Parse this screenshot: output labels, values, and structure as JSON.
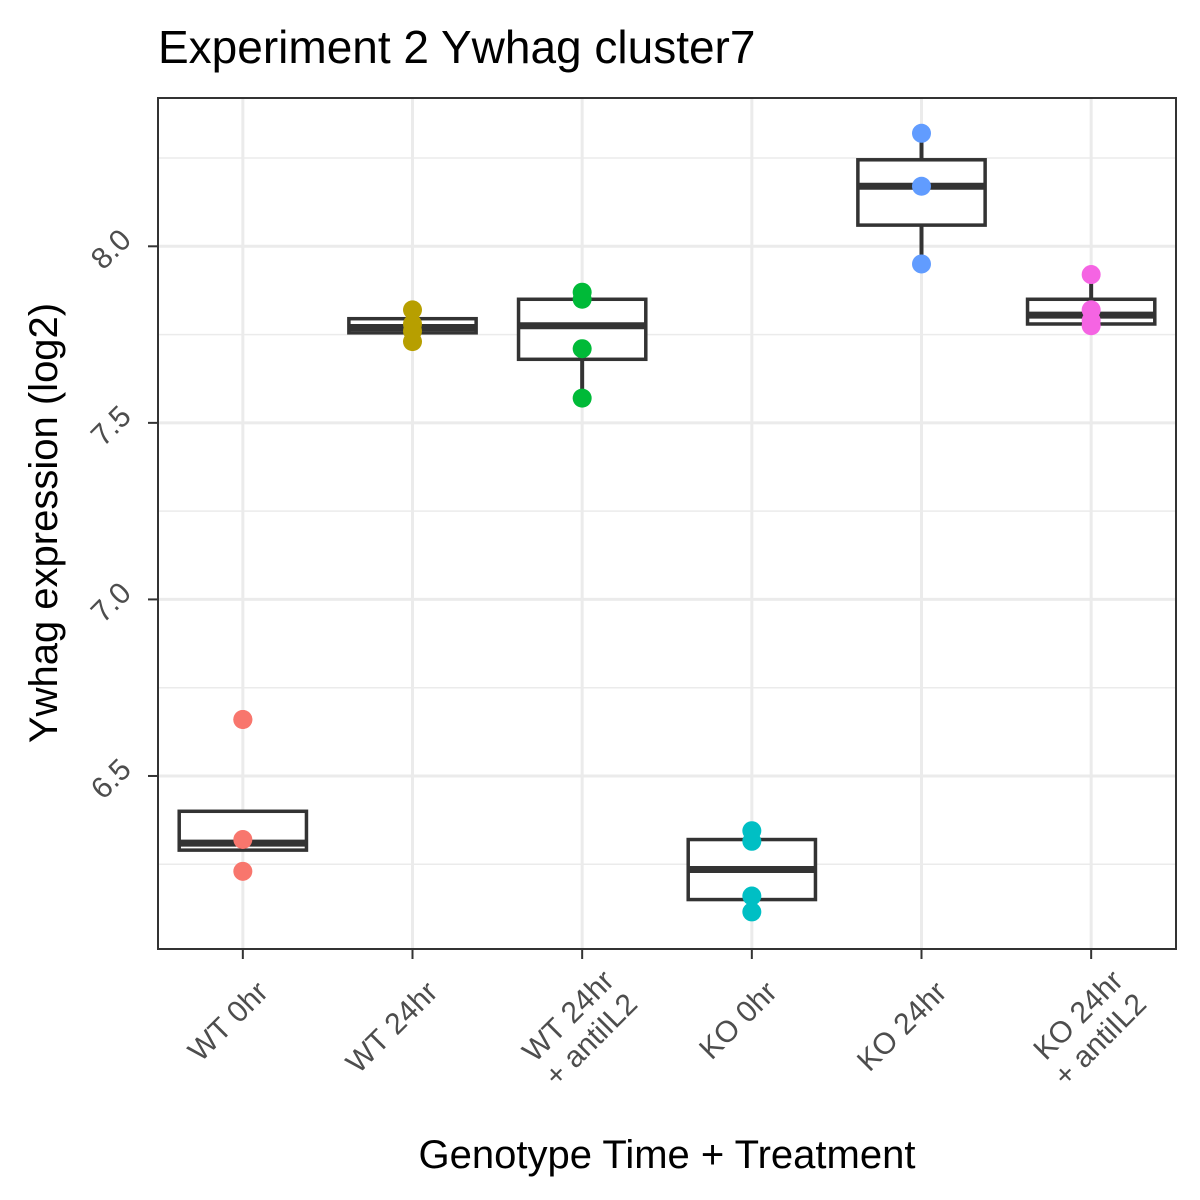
{
  "chart_data": {
    "type": "box",
    "title": "Experiment 2 Ywhag cluster7",
    "xlabel": "Genotype Time + Treatment",
    "ylabel": "Ywhag expression (log2)",
    "ylim": [
      6.01,
      8.42
    ],
    "yticks": [
      6.5,
      7.0,
      7.5,
      8.0
    ],
    "ytick_labels": [
      "6.5",
      "7.0",
      "7.5",
      "8.0"
    ],
    "grid": true,
    "categories": [
      {
        "label": [
          "WT 0hr"
        ],
        "color": "#F8766D",
        "box": {
          "min": 6.29,
          "q1": 6.29,
          "median": 6.31,
          "q3": 6.4,
          "max": 6.4
        },
        "points": [
          6.66,
          6.66,
          6.32,
          6.23
        ]
      },
      {
        "label": [
          "WT 24hr"
        ],
        "color": "#B79F00",
        "box": {
          "min": 7.75,
          "q1": 7.755,
          "median": 7.77,
          "q3": 7.795,
          "max": 7.795
        },
        "points": [
          7.82,
          7.78,
          7.76,
          7.73
        ]
      },
      {
        "label": [
          "WT 24hr",
          "+ antiIL2"
        ],
        "color": "#00BA38",
        "box": {
          "min": 7.57,
          "q1": 7.68,
          "median": 7.775,
          "q3": 7.85,
          "max": 7.87
        },
        "points": [
          7.87,
          7.85,
          7.71,
          7.57
        ]
      },
      {
        "label": [
          "KO 0hr"
        ],
        "color": "#00BFC4",
        "box": {
          "min": 6.15,
          "q1": 6.15,
          "median": 6.235,
          "q3": 6.32,
          "max": 6.32
        },
        "points": [
          6.345,
          6.315,
          6.16,
          6.115
        ]
      },
      {
        "label": [
          "KO 24hr"
        ],
        "color": "#619CFF",
        "box": {
          "min": 7.95,
          "q1": 8.06,
          "median": 8.17,
          "q3": 8.245,
          "max": 8.32
        },
        "points": [
          8.32,
          8.17,
          7.95
        ]
      },
      {
        "label": [
          "KO 24hr",
          "+ antiIL2"
        ],
        "color": "#F564E3",
        "box": {
          "min": 7.78,
          "q1": 7.78,
          "median": 7.805,
          "q3": 7.85,
          "max": 7.92
        },
        "points": [
          7.92,
          7.82,
          7.79,
          7.775
        ]
      }
    ]
  }
}
